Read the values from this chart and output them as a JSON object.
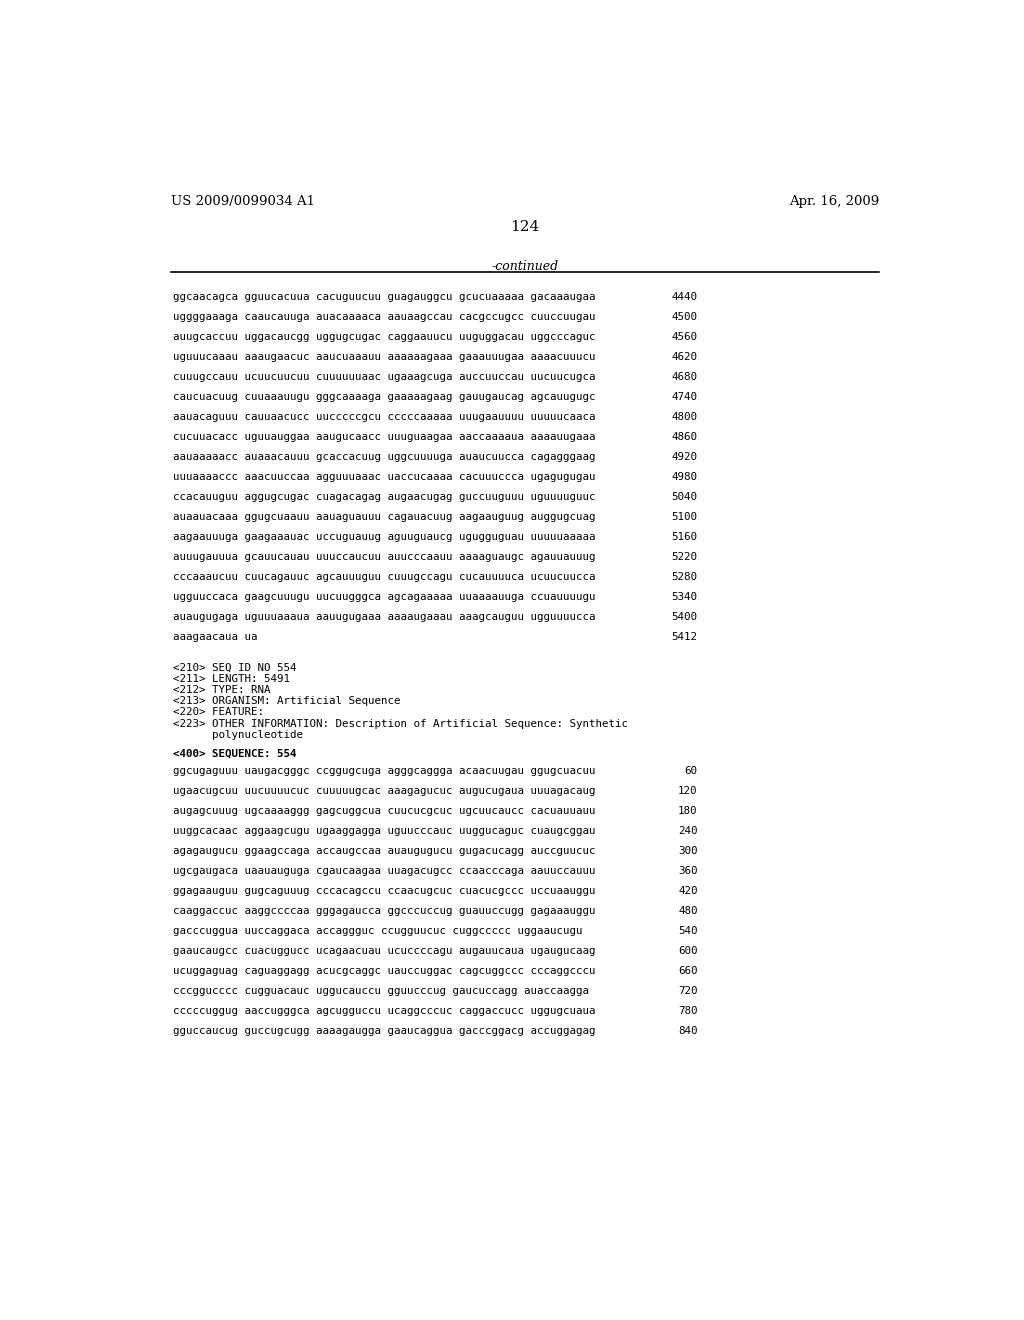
{
  "header_left": "US 2009/0099034 A1",
  "header_right": "Apr. 16, 2009",
  "page_number": "124",
  "continued_label": "-continued",
  "background_color": "#ffffff",
  "text_color": "#000000",
  "sequence_lines_top": [
    [
      "ggcaacagca gguucacuua cacuguucuu guagauggcu gcucuaaaaa gacaaaugaa",
      "4440"
    ],
    [
      "uggggaaaga caaucauuga auacaaaaca aauaagccau cacgccugcc cuuccuugau",
      "4500"
    ],
    [
      "auugcaccuu uggacaucgg uggugcugac caggaauucu uuguggacau uggcccaguc",
      "4560"
    ],
    [
      "uguuucaaau aaaugaacuc aaucuaaauu aaaaaagaaa gaaauuugaa aaaacuuucu",
      "4620"
    ],
    [
      "cuuugccauu ucuucuucuu cuuuuuuaac ugaaagcuga auccuuccau uucuucugca",
      "4680"
    ],
    [
      "caucuacuug cuuaaauugu gggcaaaaga gaaaaagaag gauugaucag agcauugugc",
      "4740"
    ],
    [
      "aauacaguuu cauuaacucc uucccccgcu cccccaaaaa uuugaauuuu uuuuucaaca",
      "4800"
    ],
    [
      "cucuuacacc uguuauggaa aaugucaacc uuuguaagaa aaccaaaaua aaaauugaaa",
      "4860"
    ],
    [
      "aauaaaaacc auaaacauuu gcaccacuug uggcuuuuga auaucuucca cagagggaag",
      "4920"
    ],
    [
      "uuuaaaaccc aaacuuccaa agguuuaaac uaccucaaaa cacuuuccca ugagugugau",
      "4980"
    ],
    [
      "ccacauuguu aggugcugac cuagacagag augaacugag guccuuguuu uguuuuguuc",
      "5040"
    ],
    [
      "auaauacaaa ggugcuaauu aauaguauuu cagauacuug aagaauguug auggugcuag",
      "5100"
    ],
    [
      "aagaauuuga gaagaaauac uccuguauug aguuguaucg ugugguguau uuuuuaaaaa",
      "5160"
    ],
    [
      "auuugauuua gcauucauau uuuccaucuu auucccaauu aaaaguaugc agauuauuug",
      "5220"
    ],
    [
      "cccaaaucuu cuucagauuc agcauuuguu cuuugccagu cucauuuuca ucuucuucca",
      "5280"
    ],
    [
      "ugguuccaca gaagcuuugu uucuugggca agcagaaaaa uuaaaauuga ccuauuuugu",
      "5340"
    ],
    [
      "auaugugaga uguuuaaaua aauugugaaa aaaaugaaau aaagcauguu ugguuuucca",
      "5400"
    ],
    [
      "aaagaacaua ua",
      "5412"
    ]
  ],
  "metadata_lines": [
    "<210> SEQ ID NO 554",
    "<211> LENGTH: 5491",
    "<212> TYPE: RNA",
    "<213> ORGANISM: Artificial Sequence",
    "<220> FEATURE:",
    "<223> OTHER INFORMATION: Description of Artificial Sequence: Synthetic",
    "      polynucleotide"
  ],
  "sequence_label": "<400> SEQUENCE: 554",
  "sequence_lines_bottom": [
    [
      "ggcugaguuu uaugacgggc ccggugcuga agggcaggga acaacuugau ggugcuacuu",
      "60"
    ],
    [
      "ugaacugcuu uucuuuucuc cuuuuugcac aaagagucuc augucugaua uuuagacaug",
      "120"
    ],
    [
      "augagcuuug ugcaaaaggg gagcuggcua cuucucgcuc ugcuucaucc cacuauuauu",
      "180"
    ],
    [
      "uuggcacaac aggaagcugu ugaaggagga uguucccauc uuggucaguc cuaugcggau",
      "240"
    ],
    [
      "agagaugucu ggaagccaga accaugccaa auaugugucu gugacucagg auccguucuc",
      "300"
    ],
    [
      "ugcgaugaca uaauauguga cgaucaagaa uuagacugcc ccaacccaga aauuccauuu",
      "360"
    ],
    [
      "ggagaauguu gugcaguuug cccacagccu ccaacugcuc cuacucgccc uccuaauggu",
      "420"
    ],
    [
      "caaggaccuc aaggccccaa gggagaucca ggcccuccug guauuccugg gagaaauggu",
      "480"
    ],
    [
      "gacccuggua uuccaggaca accaggguc ccugguucuc cuggccccc uggaaucugu",
      "540"
    ],
    [
      "gaaucaugcc cuacuggucc ucagaacuau ucuccccagu augauucaua ugaugucaag",
      "600"
    ],
    [
      "ucuggaguag caguaggagg acucgcaggc uauccuggac cagcuggccc cccaggcccu",
      "660"
    ],
    [
      "cccggucccc cugguacauc uggucauccu gguucccug gaucuccagg auaccaagga",
      "720"
    ],
    [
      "cccccuggug aaccugggca agcugguccu ucaggcccuc caggaccucc uggugcuaua",
      "780"
    ],
    [
      "gguccaucug guccugcugg aaaagaugga gaaucaggua gacccggacg accuggagag",
      "840"
    ]
  ]
}
